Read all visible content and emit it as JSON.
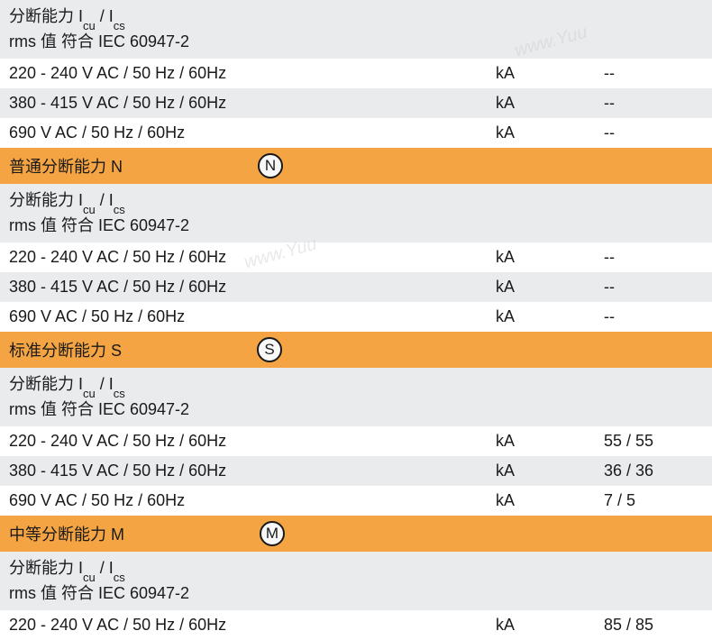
{
  "colors": {
    "row_gray": "#e9ebed",
    "row_orange": "#f4a442",
    "row_white": "#ffffff",
    "text": "#1a1a1a"
  },
  "top_header": "分断能力 Iᴄᵤ / Iᴄₛ",
  "iec_line": "rms 值 符合 IEC 60947-2",
  "icu_label_main": "分断能力 I",
  "icu_sub1": "cu",
  "icu_slash": " / I",
  "icu_sub2": "cs",
  "rows_top": [
    {
      "label": "220 - 240 V AC / 50 Hz / 60Hz",
      "unit": "kA",
      "value": "--",
      "bg": "row-white"
    },
    {
      "label": "380 - 415 V AC / 50 Hz / 60Hz",
      "unit": "kA",
      "value": "--",
      "bg": "row-gray"
    },
    {
      "label": "690 V AC / 50 Hz / 60Hz",
      "unit": "kA",
      "value": "--",
      "bg": "row-white"
    }
  ],
  "section_n": {
    "title": "普通分断能力 N",
    "icon": "N"
  },
  "rows_n": [
    {
      "label": "220 - 240 V AC / 50 Hz / 60Hz",
      "unit": "kA",
      "value": "--",
      "bg": "row-white"
    },
    {
      "label": "380 - 415 V AC / 50 Hz / 60Hz",
      "unit": "kA",
      "value": "--",
      "bg": "row-gray"
    },
    {
      "label": "690 V AC / 50 Hz / 60Hz",
      "unit": "kA",
      "value": "--",
      "bg": "row-white"
    }
  ],
  "section_s": {
    "title": "标准分断能力 S",
    "icon": "S"
  },
  "rows_s": [
    {
      "label": "220 - 240 V AC / 50 Hz / 60Hz",
      "unit": "kA",
      "value": "55 / 55",
      "bg": "row-white"
    },
    {
      "label": "380 - 415 V AC / 50 Hz / 60Hz",
      "unit": "kA",
      "value": "36 / 36",
      "bg": "row-gray"
    },
    {
      "label": "690 V AC / 50 Hz / 60Hz",
      "unit": "kA",
      "value": "7 / 5",
      "bg": "row-white"
    }
  ],
  "section_m": {
    "title": "中等分断能力 M",
    "icon": "M"
  },
  "rows_m": [
    {
      "label": "220 - 240 V AC / 50 Hz / 60Hz",
      "unit": "kA",
      "value": "85 / 85",
      "bg": "row-white"
    }
  ],
  "watermark": "www.Yuu"
}
